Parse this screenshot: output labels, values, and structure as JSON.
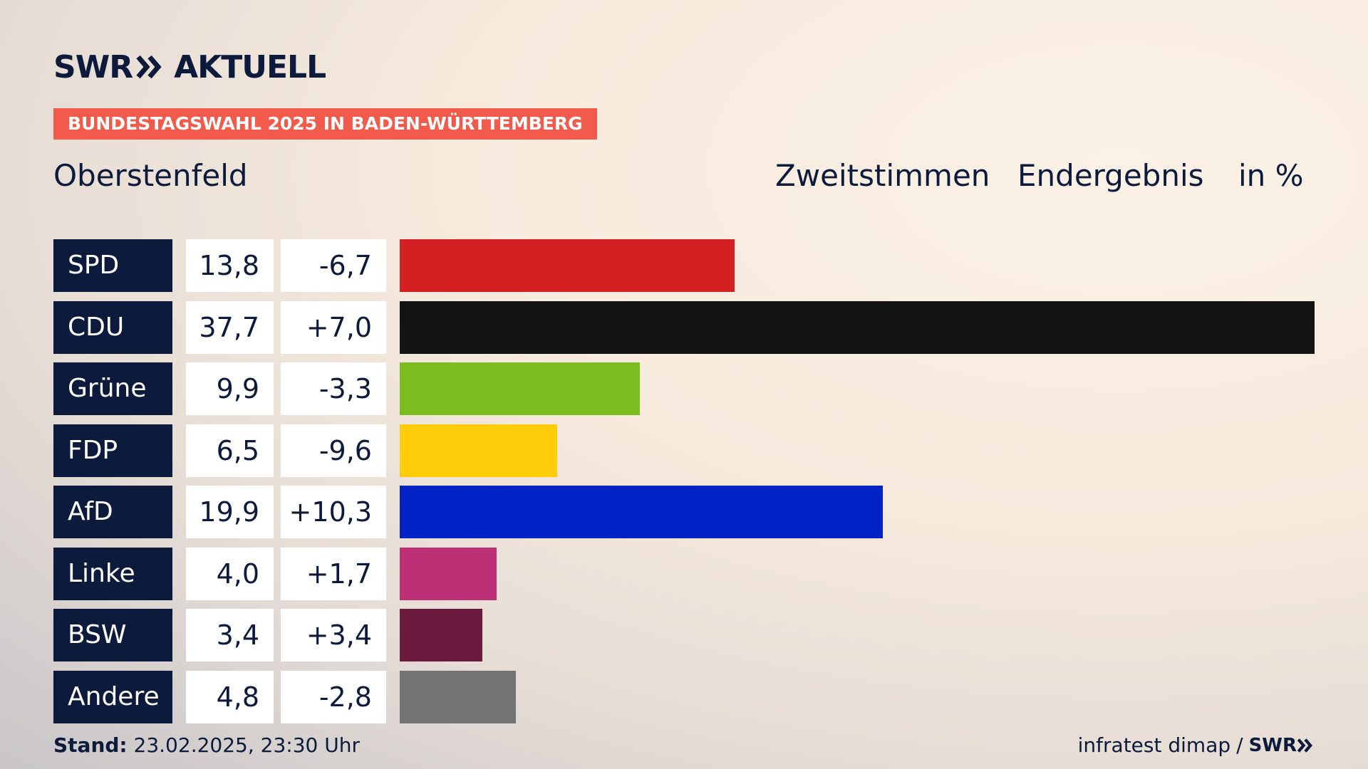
{
  "logo": {
    "left": "SWR",
    "right": "AKTUELL"
  },
  "topic": "BUNDESTAGSWAHL 2025 IN BADEN-WÜRTTEMBERG",
  "region": "Oberstenfeld",
  "header": {
    "vote_type": "Zweitstimmen",
    "result_status": "Endergebnis",
    "unit": "in %"
  },
  "chart_data": {
    "type": "bar",
    "orientation": "horizontal",
    "title": "",
    "xlabel": "",
    "ylabel": "",
    "categories": [
      "SPD",
      "CDU",
      "Grüne",
      "FDP",
      "AfD",
      "Linke",
      "BSW",
      "Andere"
    ],
    "values": [
      13.8,
      37.7,
      9.9,
      6.5,
      19.9,
      4.0,
      3.4,
      4.8
    ],
    "value_labels": [
      "13,8",
      "37,7",
      "9,9",
      "6,5",
      "19,9",
      "4,0",
      "3,4",
      "4,8"
    ],
    "diff_labels": [
      "-6,7",
      "+7,0",
      "-3,3",
      "-9,6",
      "+10,3",
      "+1,7",
      "+3,4",
      "-2,8"
    ],
    "colors": [
      "#d51f22",
      "#141414",
      "#7bbd1e",
      "#ffcc0a",
      "#0023c6",
      "#bd3075",
      "#6a1a3c",
      "#737373"
    ],
    "xlim": [
      0,
      37.7
    ],
    "grid": false,
    "legend": "none"
  },
  "footer": {
    "stand_label": "Stand:",
    "stand_value": "23.02.2025, 23:30 Uhr",
    "source": "infratest dimap",
    "separator": "/",
    "source_logo": "SWR"
  }
}
